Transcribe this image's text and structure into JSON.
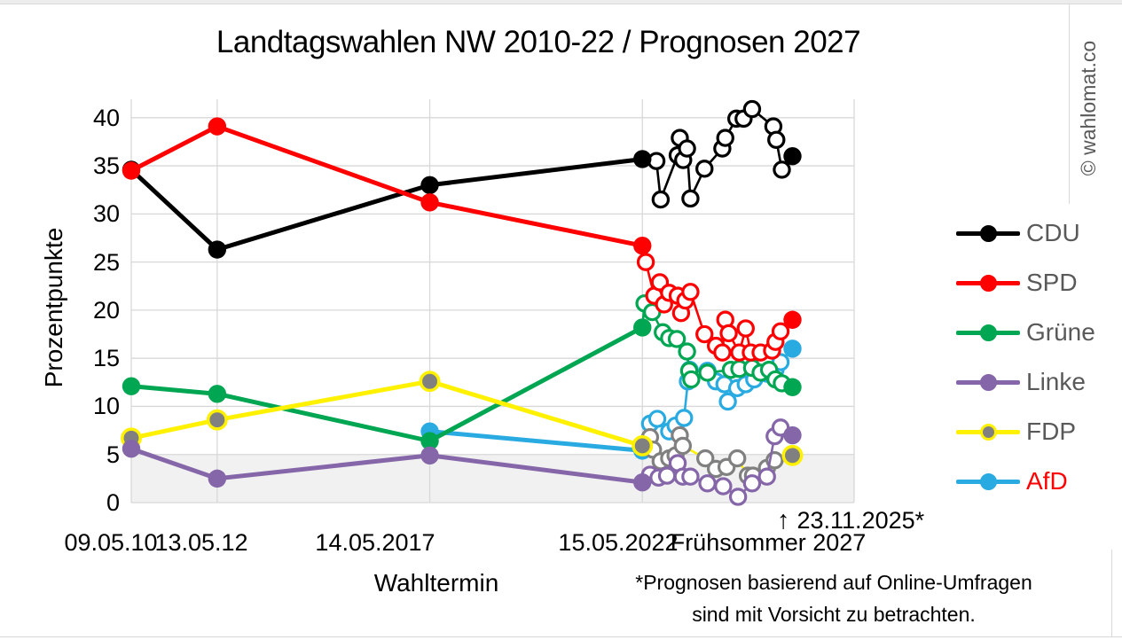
{
  "page": {
    "watermark": "© wahlomat.co"
  },
  "chart_data": {
    "type": "line",
    "title": "Landtagswahlen NW 2010-22 / Prognosen 2027",
    "xlabel": "Wahltermin",
    "ylabel": "Prozentpunkte",
    "ylim": [
      0,
      40
    ],
    "grid": true,
    "grid_color": "#d8d8d8",
    "y_ticks": [
      0,
      5,
      10,
      15,
      20,
      25,
      30,
      35,
      40
    ],
    "x_tick_labels": [
      "09.05.10",
      "13.05.12",
      "14.05.2017",
      "15.05.2022",
      "Frühsommer 2027"
    ],
    "x_gridline_years": [
      2010.35,
      2012.37,
      2017.37,
      2022.37,
      2027.35
    ],
    "election_years": [
      2010.35,
      2012.37,
      2017.37,
      2022.37
    ],
    "shaded_band": {
      "from": 0,
      "to": 5,
      "color": "#f1f1f1"
    },
    "annotation": {
      "symbol": "↑",
      "label": "23.11.2025*"
    },
    "footnote_line1": "*Prognosen basierend auf Online-Umfragen",
    "footnote_line2": "sind mit Vorsicht zu betrachten.",
    "series": [
      {
        "name": "CDU",
        "z": 1,
        "line": "#000000",
        "marker_fill": "#000000",
        "marker_ring": "#000000",
        "marker_ring_w": 0,
        "poll_ring": "#000000",
        "elections": [
          [
            2010.35,
            34.6
          ],
          [
            2012.37,
            26.3
          ],
          [
            2017.37,
            33.0
          ],
          [
            2022.37,
            35.7
          ]
        ],
        "polls": [
          [
            2022.7,
            35.5
          ],
          [
            2022.8,
            31.5
          ],
          [
            2023.2,
            36.1
          ],
          [
            2023.25,
            37.9
          ],
          [
            2023.33,
            35.6
          ],
          [
            2023.42,
            36.8
          ],
          [
            2023.5,
            31.6
          ],
          [
            2023.83,
            34.7
          ],
          [
            2024.25,
            36.8
          ],
          [
            2024.32,
            37.9
          ],
          [
            2024.58,
            39.9
          ],
          [
            2024.75,
            39.9
          ],
          [
            2024.95,
            40.9
          ],
          [
            2025.45,
            39.1
          ],
          [
            2025.52,
            37.7
          ],
          [
            2025.65,
            34.6
          ]
        ],
        "prognosis": [
          2025.9,
          36
        ]
      },
      {
        "name": "SPD",
        "z": 4,
        "line": "#ff0000",
        "marker_fill": "#ff0000",
        "marker_ring": "#ff0000",
        "marker_ring_w": 0,
        "poll_ring": "#ff0000",
        "elections": [
          [
            2010.35,
            34.5
          ],
          [
            2012.37,
            39.1
          ],
          [
            2017.37,
            31.2
          ],
          [
            2022.37,
            26.7
          ]
        ],
        "polls": [
          [
            2022.45,
            25.0
          ],
          [
            2022.65,
            21.5
          ],
          [
            2022.78,
            22.9
          ],
          [
            2022.88,
            20.6
          ],
          [
            2023.0,
            21.8
          ],
          [
            2023.2,
            21.5
          ],
          [
            2023.28,
            19.7
          ],
          [
            2023.38,
            21.0
          ],
          [
            2023.5,
            21.9
          ],
          [
            2023.83,
            17.5
          ],
          [
            2024.1,
            16.3
          ],
          [
            2024.25,
            15.6
          ],
          [
            2024.32,
            19.0
          ],
          [
            2024.4,
            17.6
          ],
          [
            2024.65,
            15.6
          ],
          [
            2024.8,
            18.1
          ],
          [
            2024.92,
            15.6
          ],
          [
            2025.15,
            15.6
          ],
          [
            2025.42,
            15.8
          ],
          [
            2025.5,
            16.7
          ],
          [
            2025.62,
            17.8
          ]
        ],
        "prognosis": [
          2025.9,
          19
        ]
      },
      {
        "name": "Grüne",
        "z": 3,
        "line": "#00a651",
        "marker_fill": "#00a651",
        "marker_ring": "#00a651",
        "marker_ring_w": 0,
        "poll_ring": "#00a651",
        "elections": [
          [
            2010.35,
            12.1
          ],
          [
            2012.37,
            11.3
          ],
          [
            2017.37,
            6.4
          ],
          [
            2022.37,
            18.2
          ]
        ],
        "polls": [
          [
            2022.42,
            20.7
          ],
          [
            2022.6,
            19.8
          ],
          [
            2022.85,
            17.7
          ],
          [
            2023.0,
            17.1
          ],
          [
            2023.18,
            17.0
          ],
          [
            2023.42,
            15.7
          ],
          [
            2023.47,
            13.7
          ],
          [
            2023.52,
            12.8
          ],
          [
            2023.9,
            13.5
          ],
          [
            2024.45,
            13.8
          ],
          [
            2024.65,
            13.9
          ],
          [
            2024.95,
            14.0
          ],
          [
            2025.15,
            13.5
          ],
          [
            2025.35,
            13.8
          ],
          [
            2025.5,
            12.8
          ],
          [
            2025.65,
            12.4
          ]
        ],
        "prognosis": [
          2025.9,
          12
        ]
      },
      {
        "name": "Linke",
        "z": 6,
        "line": "#8566a8",
        "marker_fill": "#8566a8",
        "marker_ring": "#8566a8",
        "marker_ring_w": 0,
        "poll_ring": "#8566a8",
        "elections": [
          [
            2010.35,
            5.6
          ],
          [
            2012.37,
            2.5
          ],
          [
            2017.37,
            4.9
          ],
          [
            2022.37,
            2.1
          ]
        ],
        "polls": [
          [
            2022.55,
            2.9
          ],
          [
            2022.75,
            2.6
          ],
          [
            2022.95,
            2.8
          ],
          [
            2023.2,
            4.1
          ],
          [
            2023.32,
            2.7
          ],
          [
            2023.5,
            2.7
          ],
          [
            2023.9,
            2.0
          ],
          [
            2024.27,
            1.7
          ],
          [
            2024.62,
            0.6
          ],
          [
            2024.95,
            2.0
          ],
          [
            2025.3,
            2.7
          ],
          [
            2025.48,
            6.9
          ],
          [
            2025.62,
            7.8
          ]
        ],
        "prognosis": [
          2025.9,
          7
        ]
      },
      {
        "name": "FDP",
        "z": 5,
        "line": "#fff100",
        "marker_fill": "#808080",
        "marker_ring": "#fff100",
        "marker_ring_w": 3.5,
        "poll_ring": "#808080",
        "elections": [
          [
            2010.35,
            6.7
          ],
          [
            2012.37,
            8.6
          ],
          [
            2017.37,
            12.6
          ],
          [
            2022.37,
            5.9
          ]
        ],
        "polls": [
          [
            2022.55,
            6.8
          ],
          [
            2022.62,
            5.5
          ],
          [
            2022.8,
            4.3
          ],
          [
            2023.0,
            4.6
          ],
          [
            2023.15,
            4.9
          ],
          [
            2023.25,
            7.0
          ],
          [
            2023.32,
            5.9
          ],
          [
            2023.85,
            4.6
          ],
          [
            2024.1,
            3.5
          ],
          [
            2024.35,
            3.7
          ],
          [
            2024.6,
            4.6
          ],
          [
            2024.85,
            2.8
          ],
          [
            2024.97,
            2.8
          ],
          [
            2025.3,
            3.6
          ],
          [
            2025.48,
            4.4
          ]
        ],
        "prognosis": [
          2025.9,
          4.9
        ]
      },
      {
        "name": "AfD",
        "z": 2,
        "line": "#29abe2",
        "marker_fill": "#29abe2",
        "marker_ring": "#29abe2",
        "marker_ring_w": 0,
        "poll_ring": "#29abe2",
        "elections": [
          [
            2017.37,
            7.4
          ],
          [
            2022.37,
            5.4
          ]
        ],
        "polls": [
          [
            2022.55,
            8.2
          ],
          [
            2022.72,
            8.7
          ],
          [
            2023.0,
            7.4
          ],
          [
            2023.15,
            8.0
          ],
          [
            2023.35,
            8.8
          ],
          [
            2023.44,
            12.6
          ],
          [
            2023.48,
            13.8
          ],
          [
            2023.9,
            13.7
          ],
          [
            2024.1,
            12.6
          ],
          [
            2024.3,
            12.3
          ],
          [
            2024.38,
            10.5
          ],
          [
            2024.6,
            11.9
          ],
          [
            2024.8,
            12.3
          ],
          [
            2025.0,
            12.8
          ],
          [
            2025.3,
            13.4
          ],
          [
            2025.5,
            13.8
          ],
          [
            2025.62,
            14.6
          ]
        ],
        "prognosis": [
          2025.9,
          16
        ]
      }
    ],
    "legend": [
      {
        "label": "CDU",
        "line": "#000000",
        "dot": "#000000",
        "ring": "#000000",
        "text": "#595959"
      },
      {
        "label": "SPD",
        "line": "#ff0000",
        "dot": "#ff0000",
        "ring": "#ff0000",
        "text": "#595959"
      },
      {
        "label": "Grüne",
        "line": "#00a651",
        "dot": "#00a651",
        "ring": "#00a651",
        "text": "#595959"
      },
      {
        "label": "Linke",
        "line": "#8566a8",
        "dot": "#8566a8",
        "ring": "#8566a8",
        "text": "#595959"
      },
      {
        "label": "FDP",
        "line": "#fff100",
        "dot": "#808080",
        "ring": "#fff100",
        "text": "#595959"
      },
      {
        "label": "AfD",
        "line": "#29abe2",
        "dot": "#29abe2",
        "ring": "#29abe2",
        "text": "#ff0000"
      }
    ]
  }
}
